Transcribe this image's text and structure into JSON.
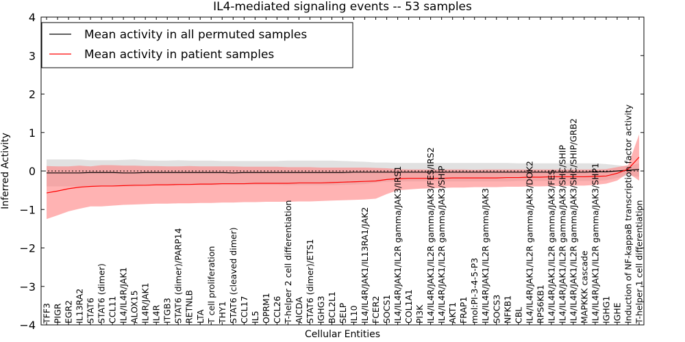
{
  "chart_data": {
    "type": "line",
    "title": "IL4-mediated signaling events -- 53 samples",
    "xlabel": "Cellular Entities",
    "ylabel": "Inferred Activity",
    "ylim": [
      -4,
      4
    ],
    "yticks": [
      -4,
      -3,
      -2,
      -1,
      0,
      1,
      2,
      3,
      4
    ],
    "grid": false,
    "reference_line": 0,
    "legend_position": "top-left",
    "categories": [
      "TFF3",
      "PIGR",
      "EGR2",
      "IL13RA2",
      "STAT6",
      "STAT6 (dimer)",
      "CCL11",
      "IL4/IL4R/JAK1",
      "ALOX15",
      "IL4R/JAK1",
      "IL4R",
      "ITGB3",
      "STAT6 (dimer)/PARP14",
      "RETNLB",
      "LTA",
      "T cell proliferation",
      "THY1",
      "STAT6 (cleaved dimer)",
      "CCL17",
      "IL5",
      "OPRM1",
      "CCL26",
      "T-helper 2 cell differentiation",
      "AICDA",
      "STAT6 (dimer)/ETS1",
      "IGHG3",
      "BCL2L1",
      "SELP",
      "IL10",
      "IL4/IL4R/JAK1/IL13RA1/JAK2",
      "FCER2",
      "SOCS1",
      "IL4/IL4R/JAK1/IL2R gamma/JAK3/IRS1",
      "COL1A1",
      "PI3K",
      "IL4/IL4R/JAK1/IL2R gamma/JAK3/FES/IRS2",
      "IL4/IL4R/JAK1/IL2R gamma/JAK3/SHIP",
      "AKT1",
      "FRAP1",
      "mol:PI-3-4-5-P3",
      "IL4/IL4R/JAK1/IL2R gamma/JAK3",
      "SOCS3",
      "NFKB1",
      "CBL",
      "IL4/IL4R/JAK1/IL2R gamma/JAK3/DOK2",
      "RPS6KB1",
      "IL4/IL4R/JAK1/IL2R gamma/JAK3/FES",
      "IL4/IL4R/JAK1/IL2R gamma/JAK3/SHC/SHIP",
      "IL4/IL4R/JAK1/IL2R gamma/JAK3/SHC/SHIP/GRB2",
      "MAPKKK cascade",
      "IL4/IL4R/JAK1/IL2R gamma/JAK3/SHP1",
      "IGHG1",
      "IGHE",
      "Induction of NF-kappaB transcription factor activity",
      "T-helper 1 cell differentiation"
    ],
    "series": [
      {
        "name": "Mean activity in all permuted samples",
        "color": "#000000",
        "band_color": "#c8c8c8",
        "values": [
          -0.05,
          -0.05,
          -0.05,
          -0.05,
          -0.04,
          -0.04,
          -0.04,
          -0.05,
          -0.05,
          -0.04,
          -0.04,
          -0.04,
          -0.04,
          -0.04,
          -0.04,
          -0.04,
          -0.04,
          -0.05,
          -0.04,
          -0.04,
          -0.04,
          -0.04,
          -0.04,
          -0.04,
          -0.04,
          -0.04,
          -0.04,
          -0.04,
          -0.03,
          -0.03,
          -0.03,
          -0.03,
          -0.03,
          -0.03,
          -0.03,
          -0.03,
          -0.03,
          -0.03,
          -0.03,
          -0.03,
          -0.03,
          -0.03,
          -0.03,
          -0.03,
          -0.03,
          -0.03,
          -0.03,
          -0.03,
          -0.03,
          -0.03,
          -0.02,
          -0.02,
          0.0,
          0.02,
          0.04
        ],
        "band_upper": [
          0.3,
          0.3,
          0.3,
          0.3,
          0.28,
          0.28,
          0.28,
          0.29,
          0.3,
          0.28,
          0.27,
          0.27,
          0.28,
          0.27,
          0.27,
          0.27,
          0.26,
          0.26,
          0.26,
          0.26,
          0.26,
          0.26,
          0.27,
          0.27,
          0.27,
          0.27,
          0.27,
          0.26,
          0.25,
          0.24,
          0.22,
          0.22,
          0.21,
          0.21,
          0.21,
          0.21,
          0.21,
          0.21,
          0.21,
          0.21,
          0.21,
          0.21,
          0.21,
          0.2,
          0.2,
          0.2,
          0.2,
          0.2,
          0.2,
          0.2,
          0.2,
          0.18,
          0.15,
          0.12,
          0.2
        ],
        "band_lower": [
          -0.4,
          -0.4,
          -0.4,
          -0.4,
          -0.38,
          -0.38,
          -0.38,
          -0.39,
          -0.4,
          -0.38,
          -0.37,
          -0.37,
          -0.38,
          -0.37,
          -0.37,
          -0.37,
          -0.36,
          -0.36,
          -0.36,
          -0.36,
          -0.36,
          -0.36,
          -0.37,
          -0.37,
          -0.37,
          -0.37,
          -0.37,
          -0.36,
          -0.35,
          -0.34,
          -0.3,
          -0.28,
          -0.27,
          -0.27,
          -0.27,
          -0.27,
          -0.27,
          -0.27,
          -0.27,
          -0.27,
          -0.27,
          -0.27,
          -0.27,
          -0.26,
          -0.26,
          -0.26,
          -0.26,
          -0.26,
          -0.26,
          -0.26,
          -0.26,
          -0.24,
          -0.18,
          -0.12,
          -0.15
        ]
      },
      {
        "name": "Mean activity in patient samples",
        "color": "#ff0000",
        "band_color": "#ff8080",
        "values": [
          -0.57,
          -0.52,
          -0.46,
          -0.42,
          -0.4,
          -0.39,
          -0.39,
          -0.38,
          -0.37,
          -0.37,
          -0.36,
          -0.36,
          -0.35,
          -0.35,
          -0.34,
          -0.34,
          -0.33,
          -0.33,
          -0.33,
          -0.32,
          -0.32,
          -0.32,
          -0.32,
          -0.31,
          -0.31,
          -0.31,
          -0.3,
          -0.29,
          -0.28,
          -0.27,
          -0.26,
          -0.22,
          -0.2,
          -0.19,
          -0.19,
          -0.19,
          -0.19,
          -0.18,
          -0.18,
          -0.18,
          -0.18,
          -0.18,
          -0.17,
          -0.17,
          -0.16,
          -0.16,
          -0.15,
          -0.15,
          -0.15,
          -0.15,
          -0.14,
          -0.13,
          -0.06,
          0.05,
          0.36
        ],
        "band_upper": [
          0.13,
          0.12,
          0.12,
          0.14,
          0.12,
          0.15,
          0.15,
          0.14,
          0.14,
          0.13,
          0.13,
          0.12,
          0.12,
          0.13,
          0.12,
          0.12,
          0.12,
          0.12,
          0.11,
          0.11,
          0.11,
          0.11,
          0.1,
          0.1,
          0.1,
          0.09,
          0.09,
          0.09,
          0.09,
          0.09,
          0.08,
          0.07,
          0.05,
          0.04,
          0.04,
          0.04,
          0.04,
          0.04,
          0.04,
          0.03,
          0.04,
          0.04,
          0.04,
          0.04,
          0.04,
          0.04,
          0.04,
          0.04,
          0.04,
          0.04,
          0.04,
          0.05,
          0.1,
          0.15,
          0.95
        ],
        "band_lower": [
          -1.25,
          -1.15,
          -1.05,
          -0.98,
          -0.92,
          -0.92,
          -0.9,
          -0.88,
          -0.87,
          -0.86,
          -0.85,
          -0.85,
          -0.84,
          -0.84,
          -0.83,
          -0.83,
          -0.82,
          -0.82,
          -0.81,
          -0.81,
          -0.8,
          -0.8,
          -0.8,
          -0.79,
          -0.79,
          -0.78,
          -0.77,
          -0.76,
          -0.75,
          -0.74,
          -0.72,
          -0.6,
          -0.5,
          -0.48,
          -0.46,
          -0.45,
          -0.44,
          -0.43,
          -0.43,
          -0.42,
          -0.42,
          -0.42,
          -0.41,
          -0.41,
          -0.4,
          -0.4,
          -0.39,
          -0.39,
          -0.38,
          -0.38,
          -0.36,
          -0.33,
          -0.25,
          -0.05,
          -0.25
        ]
      }
    ]
  }
}
